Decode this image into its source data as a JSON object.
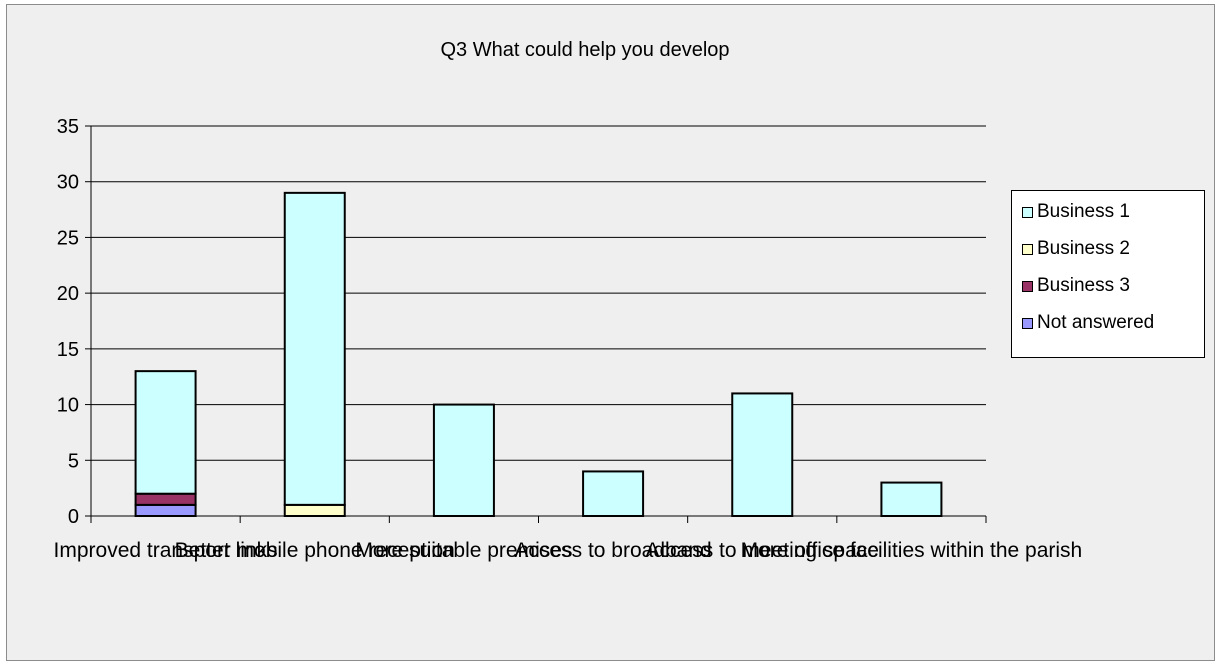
{
  "chart_data": {
    "type": "bar",
    "stacked": true,
    "title": "Q3  What could help you develop",
    "xlabel": "",
    "ylabel": "",
    "ylim": [
      0,
      35
    ],
    "yticks": [
      0,
      5,
      10,
      15,
      20,
      25,
      30,
      35
    ],
    "grid": true,
    "legend_position": "right",
    "categories": [
      "Improved transport links",
      "Better mobile phone reception",
      "More suitable premises",
      "Access to broadband",
      "Access to meeting space",
      "More office facilities within the parish"
    ],
    "series": [
      {
        "name": "Not answered",
        "color": "#9999ff",
        "values": [
          1,
          0,
          0,
          0,
          0,
          0
        ]
      },
      {
        "name": "Business 3",
        "color": "#993366",
        "values": [
          1,
          0,
          0,
          0,
          0,
          0
        ]
      },
      {
        "name": "Business 2",
        "color": "#ffffcc",
        "values": [
          0,
          1,
          0,
          0,
          0,
          0
        ]
      },
      {
        "name": "Business 1",
        "color": "#ccffff",
        "values": [
          11,
          28,
          10,
          4,
          11,
          3
        ]
      }
    ],
    "legend_order": [
      "Business 1",
      "Business 2",
      "Business 3",
      "Not answered"
    ]
  }
}
